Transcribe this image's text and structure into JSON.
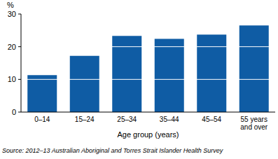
{
  "chart_data": {
    "type": "bar",
    "y_label": "%",
    "x_label": "Age group (years)",
    "source": "Source: 2012–13 Australian Aboriginal and Torres Strait Islander Health Survey",
    "categories": [
      "0–14",
      "15–24",
      "25–34",
      "35–44",
      "45–54",
      "55 years and over"
    ],
    "values": [
      11.3,
      17.2,
      23.3,
      22.4,
      23.7,
      26.5
    ],
    "color": "#0f5ca4",
    "ylim": [
      0,
      30
    ],
    "yticks": [
      0,
      10,
      20,
      30
    ],
    "grid": true
  }
}
